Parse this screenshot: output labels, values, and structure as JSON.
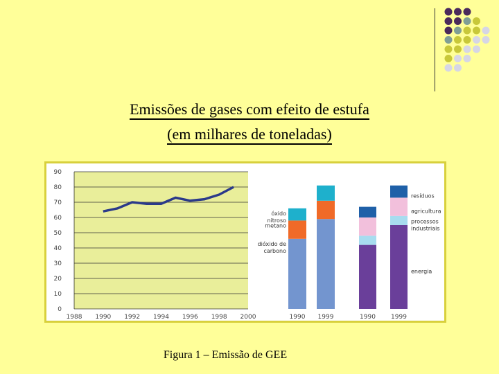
{
  "slide": {
    "title_line1": "Emissões de gases com efeito de estufa",
    "title_line2": "(em milhares de toneladas)",
    "caption": "Figura 1 – Emissão de GEE",
    "background_color": "#ffff99",
    "frame_color": "#d8d03c"
  },
  "chart_data": [
    {
      "type": "line",
      "x": [
        1990,
        1991,
        1992,
        1993,
        1994,
        1995,
        1996,
        1997,
        1998,
        1999
      ],
      "series": [
        {
          "values": [
            64,
            66,
            70,
            69,
            69,
            73,
            71,
            72,
            75,
            80
          ],
          "color": "#2b3a8a"
        }
      ],
      "xticks": [
        1988,
        1990,
        1992,
        1994,
        1996,
        1998,
        2000
      ],
      "yticks": [
        0,
        10,
        20,
        30,
        40,
        50,
        60,
        70,
        80,
        90
      ],
      "xlim": [
        1988,
        2000
      ],
      "ylim": [
        0,
        90
      ],
      "grid": true,
      "plot_background": "#e9ee9a"
    },
    {
      "type": "bar",
      "stacked": true,
      "categories": [
        "1990",
        "1999"
      ],
      "series": [
        {
          "name": "dióxido de carbono",
          "values": [
            46,
            59
          ],
          "color": "#7395cf"
        },
        {
          "name": "metano",
          "values": [
            12,
            12
          ],
          "color": "#f06a28"
        },
        {
          "name": "óxido nitroso",
          "values": [
            8,
            10
          ],
          "color": "#1eb0cc"
        }
      ],
      "ylim": [
        0,
        90
      ]
    },
    {
      "type": "bar",
      "stacked": true,
      "categories": [
        "1990",
        "1999"
      ],
      "series": [
        {
          "name": "energia",
          "values": [
            42,
            55
          ],
          "color": "#6a3f9a"
        },
        {
          "name": "processos industriais",
          "values": [
            6,
            6
          ],
          "color": "#a8dcef"
        },
        {
          "name": "agricultura",
          "values": [
            12,
            12
          ],
          "color": "#f2c0dc"
        },
        {
          "name": "resíduos",
          "values": [
            7,
            8
          ],
          "color": "#1f60a8"
        }
      ],
      "ylim": [
        0,
        90
      ]
    }
  ],
  "decor": {
    "dot_colors": [
      "#4a2a5c",
      "#7f9e96",
      "#c8c83a",
      "#d6d6e6"
    ]
  }
}
